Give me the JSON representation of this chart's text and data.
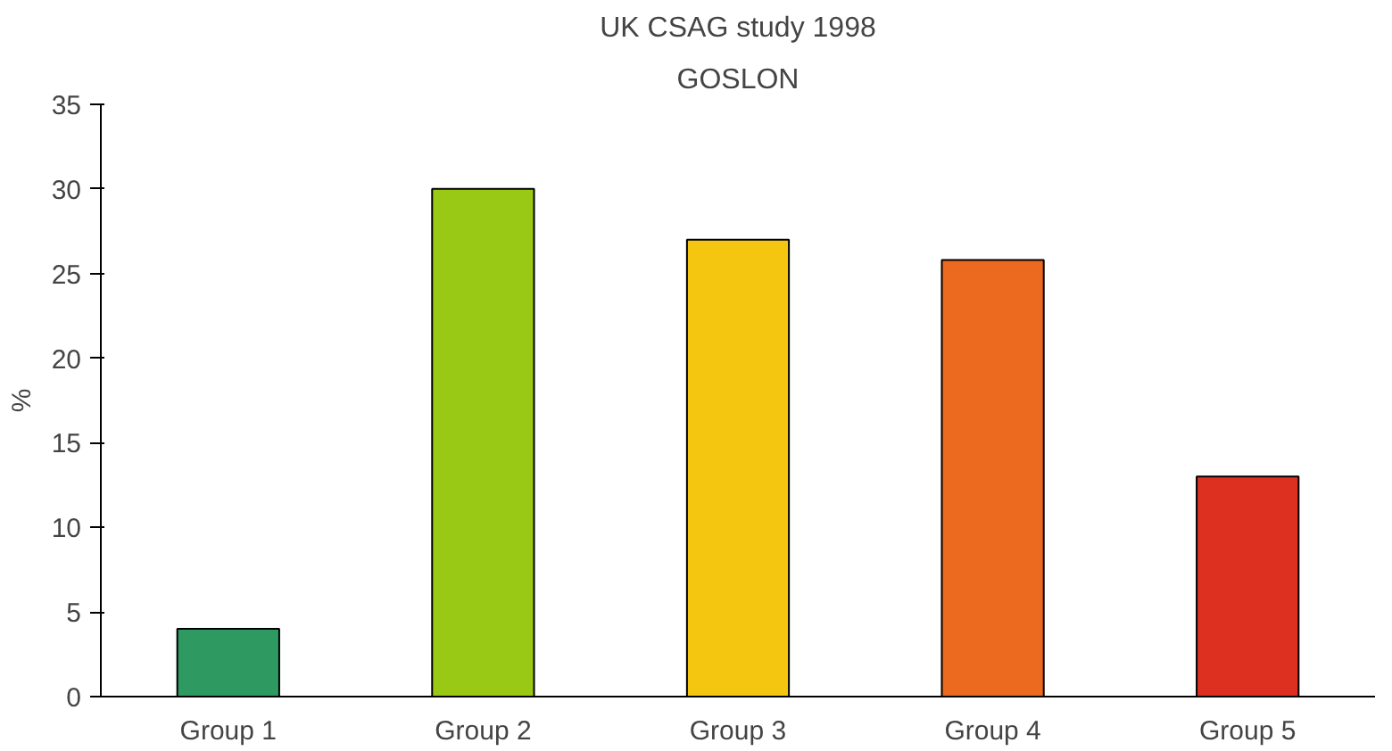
{
  "chart_data": {
    "type": "bar",
    "title": "UK CSAG study 1998",
    "subtitle": "GOSLON",
    "ylabel": "%",
    "categories": [
      "Group 1",
      "Group 2",
      "Group 3",
      "Group 4",
      "Group 5"
    ],
    "values": [
      4,
      30,
      27,
      25.8,
      13
    ],
    "colors": [
      "#2e9a62",
      "#99c914",
      "#f5c60f",
      "#ec6a1f",
      "#dd3020"
    ],
    "ylim": [
      0,
      35
    ],
    "yticks": [
      0,
      5,
      10,
      15,
      20,
      25,
      30,
      35
    ],
    "grid": false
  }
}
